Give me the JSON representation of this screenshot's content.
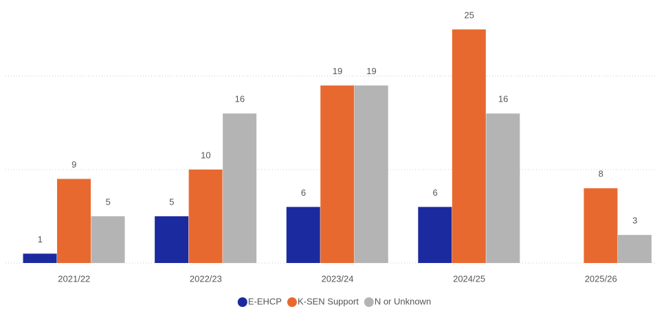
{
  "chart_data": {
    "type": "bar",
    "categories": [
      "2021/22",
      "2022/23",
      "2023/24",
      "2024/25",
      "2025/26"
    ],
    "series": [
      {
        "name": "E-EHCP",
        "color": "#1b2a9e",
        "values": [
          1,
          5,
          6,
          6,
          null
        ]
      },
      {
        "name": "K-SEN Support",
        "color": "#e8692f",
        "values": [
          9,
          10,
          19,
          25,
          8
        ]
      },
      {
        "name": "N or Unknown",
        "color": "#b4b4b4",
        "values": [
          5,
          16,
          19,
          16,
          3
        ]
      }
    ],
    "ylim": [
      0,
      28
    ],
    "yticks": [
      0,
      10,
      20
    ],
    "grid": true,
    "legend": "bottom"
  }
}
